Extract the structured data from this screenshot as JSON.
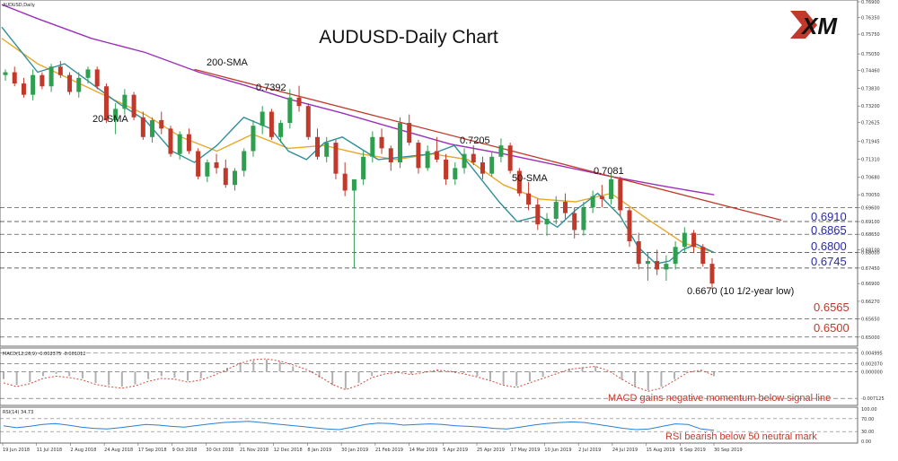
{
  "chart_data": {
    "type": "line",
    "title": "AUDUSD-Daily Chart",
    "symbol_label": "AUDUSD,Daily",
    "brand": "XM",
    "x_ticks": [
      "19 Jun 2018",
      "11 Jul 2018",
      "2 Aug 2018",
      "24 Aug 2018",
      "17 Sep 2018",
      "9 Oct 2018",
      "30 Oct 2018",
      "21 Nov 2018",
      "12 Dec 2018",
      "8 Jan 2019",
      "30 Jan 2019",
      "21 Feb 2019",
      "14 Mar 2019",
      "5 Apr 2019",
      "25 Apr 2019",
      "17 May 2019",
      "10 Jun 2019",
      "2 Jul 2019",
      "24 Jul 2019",
      "15 Aug 2019",
      "6 Sep 2019",
      "30 Sep 2019"
    ],
    "ylim": [
      0.6474,
      0.769
    ],
    "y_ticks": [
      "0.76900",
      "0.76350",
      "0.75750",
      "0.75050",
      "0.74460",
      "0.73830",
      "0.73200",
      "0.72625",
      "0.71945",
      "0.71310",
      "0.70680",
      "0.70050",
      "0.69600",
      "0.69100",
      "0.68650",
      "0.68100",
      "0.68000",
      "0.67450",
      "0.66900",
      "0.66270",
      "0.65650",
      "0.65000"
    ],
    "levels": [
      {
        "value": 0.696,
        "label": "",
        "color": "#000000"
      },
      {
        "value": 0.691,
        "label": "0.6910",
        "color": "#2a2aa8"
      },
      {
        "value": 0.6865,
        "label": "0.6865",
        "color": "#2a2aa8"
      },
      {
        "value": 0.68,
        "label": "0.6800",
        "color": "#2a2aa8"
      },
      {
        "value": 0.6745,
        "label": "0.6745",
        "color": "#2a2aa8"
      },
      {
        "value": 0.6565,
        "label": "0.6565",
        "color": "#c0392b"
      },
      {
        "value": 0.65,
        "label": "0.6500",
        "color": "#c0392b"
      }
    ],
    "annotations": [
      {
        "text": "200-SMA",
        "color": "#9b2fb5"
      },
      {
        "text": "20-SMA",
        "color": "#2f8f9b"
      },
      {
        "text": "50-SMA",
        "color": "#e0a020"
      },
      {
        "text": "0.7392",
        "color": "#111111"
      },
      {
        "text": "0.7205",
        "color": "#111111"
      },
      {
        "text": "0.7081",
        "color": "#111111"
      },
      {
        "text": "0.6670 (10 1/2-year low)",
        "color": "#111111"
      }
    ],
    "series": [
      {
        "name": "200-SMA",
        "color": "#9b30b8",
        "points": [
          [
            0,
            0.768
          ],
          [
            40,
            0.763
          ],
          [
            100,
            0.756
          ],
          [
            160,
            0.751
          ],
          [
            220,
            0.744
          ],
          [
            270,
            0.7395
          ],
          [
            320,
            0.7345
          ],
          [
            380,
            0.7295
          ],
          [
            440,
            0.724
          ],
          [
            500,
            0.7185
          ],
          [
            560,
            0.715
          ],
          [
            620,
            0.711
          ],
          [
            680,
            0.707
          ],
          [
            740,
            0.7035
          ],
          [
            795,
            0.7005
          ]
        ]
      },
      {
        "name": "50-SMA",
        "color": "#e8a82a",
        "points": [
          [
            0,
            0.756
          ],
          [
            40,
            0.747
          ],
          [
            100,
            0.738
          ],
          [
            160,
            0.729
          ],
          [
            200,
            0.721
          ],
          [
            240,
            0.716
          ],
          [
            280,
            0.722
          ],
          [
            320,
            0.717
          ],
          [
            360,
            0.718
          ],
          [
            400,
            0.715
          ],
          [
            440,
            0.713
          ],
          [
            480,
            0.715
          ],
          [
            520,
            0.713
          ],
          [
            560,
            0.704
          ],
          [
            600,
            0.699
          ],
          [
            640,
            0.698
          ],
          [
            680,
            0.701
          ],
          [
            720,
            0.692
          ],
          [
            760,
            0.6835
          ],
          [
            795,
            0.68
          ]
        ]
      },
      {
        "name": "20-SMA",
        "color": "#2f8f9b",
        "points": [
          [
            0,
            0.76
          ],
          [
            20,
            0.752
          ],
          [
            40,
            0.744
          ],
          [
            70,
            0.747
          ],
          [
            100,
            0.74
          ],
          [
            130,
            0.733
          ],
          [
            160,
            0.727
          ],
          [
            190,
            0.716
          ],
          [
            215,
            0.712
          ],
          [
            240,
            0.718
          ],
          [
            270,
            0.728
          ],
          [
            300,
            0.724
          ],
          [
            320,
            0.716
          ],
          [
            340,
            0.713
          ],
          [
            360,
            0.719
          ],
          [
            380,
            0.721
          ],
          [
            400,
            0.717
          ],
          [
            420,
            0.713
          ],
          [
            450,
            0.714
          ],
          [
            480,
            0.715
          ],
          [
            505,
            0.718
          ],
          [
            530,
            0.708
          ],
          [
            555,
            0.698
          ],
          [
            575,
            0.691
          ],
          [
            600,
            0.693
          ],
          [
            620,
            0.689
          ],
          [
            640,
            0.695
          ],
          [
            665,
            0.701
          ],
          [
            690,
            0.693
          ],
          [
            710,
            0.682
          ],
          [
            730,
            0.676
          ],
          [
            745,
            0.677
          ],
          [
            760,
            0.681
          ],
          [
            775,
            0.683
          ],
          [
            795,
            0.68
          ]
        ]
      },
      {
        "name": "",
        "color": "#c0392b",
        "points": [
          [
            215,
            0.745
          ],
          [
            870,
            0.6915
          ]
        ]
      }
    ],
    "candles": [
      [
        0.743,
        0.745,
        0.741,
        0.744
      ],
      [
        0.744,
        0.746,
        0.739,
        0.74
      ],
      [
        0.74,
        0.742,
        0.735,
        0.736
      ],
      [
        0.736,
        0.745,
        0.734,
        0.743
      ],
      [
        0.743,
        0.744,
        0.738,
        0.739
      ],
      [
        0.739,
        0.747,
        0.737,
        0.746
      ],
      [
        0.746,
        0.748,
        0.742,
        0.743
      ],
      [
        0.743,
        0.744,
        0.736,
        0.737
      ],
      [
        0.737,
        0.744,
        0.735,
        0.742
      ],
      [
        0.742,
        0.746,
        0.74,
        0.745
      ],
      [
        0.745,
        0.746,
        0.738,
        0.739
      ],
      [
        0.739,
        0.74,
        0.726,
        0.727
      ],
      [
        0.727,
        0.733,
        0.722,
        0.731
      ],
      [
        0.731,
        0.738,
        0.729,
        0.736
      ],
      [
        0.736,
        0.737,
        0.727,
        0.728
      ],
      [
        0.728,
        0.73,
        0.72,
        0.721
      ],
      [
        0.721,
        0.728,
        0.719,
        0.727
      ],
      [
        0.727,
        0.73,
        0.722,
        0.724
      ],
      [
        0.724,
        0.725,
        0.714,
        0.715
      ],
      [
        0.715,
        0.723,
        0.713,
        0.722
      ],
      [
        0.722,
        0.724,
        0.715,
        0.716
      ],
      [
        0.716,
        0.717,
        0.706,
        0.707
      ],
      [
        0.707,
        0.713,
        0.705,
        0.712
      ],
      [
        0.712,
        0.715,
        0.708,
        0.71
      ],
      [
        0.71,
        0.713,
        0.703,
        0.704
      ],
      [
        0.704,
        0.71,
        0.702,
        0.709
      ],
      [
        0.709,
        0.717,
        0.707,
        0.716
      ],
      [
        0.716,
        0.727,
        0.714,
        0.725
      ],
      [
        0.725,
        0.732,
        0.722,
        0.73
      ],
      [
        0.73,
        0.731,
        0.72,
        0.721
      ],
      [
        0.721,
        0.727,
        0.719,
        0.726
      ],
      [
        0.726,
        0.738,
        0.724,
        0.735
      ],
      [
        0.735,
        0.7392,
        0.73,
        0.732
      ],
      [
        0.732,
        0.733,
        0.72,
        0.721
      ],
      [
        0.721,
        0.724,
        0.713,
        0.714
      ],
      [
        0.714,
        0.721,
        0.712,
        0.719
      ],
      [
        0.719,
        0.72,
        0.706,
        0.708
      ],
      [
        0.708,
        0.712,
        0.7,
        0.702
      ],
      [
        0.702,
        0.705,
        0.6745,
        0.706
      ],
      [
        0.706,
        0.716,
        0.704,
        0.714
      ],
      [
        0.714,
        0.723,
        0.712,
        0.721
      ],
      [
        0.721,
        0.724,
        0.715,
        0.717
      ],
      [
        0.717,
        0.718,
        0.709,
        0.712
      ],
      [
        0.712,
        0.728,
        0.71,
        0.726
      ],
      [
        0.726,
        0.729,
        0.718,
        0.719
      ],
      [
        0.719,
        0.72,
        0.708,
        0.71
      ],
      [
        0.71,
        0.718,
        0.709,
        0.716
      ],
      [
        0.716,
        0.721,
        0.712,
        0.713
      ],
      [
        0.713,
        0.715,
        0.704,
        0.706
      ],
      [
        0.706,
        0.712,
        0.704,
        0.71
      ],
      [
        0.71,
        0.717,
        0.708,
        0.715
      ],
      [
        0.715,
        0.718,
        0.711,
        0.712
      ],
      [
        0.712,
        0.714,
        0.706,
        0.708
      ],
      [
        0.708,
        0.716,
        0.707,
        0.714
      ],
      [
        0.714,
        0.7205,
        0.712,
        0.718
      ],
      [
        0.718,
        0.719,
        0.708,
        0.709
      ],
      [
        0.709,
        0.71,
        0.7,
        0.701
      ],
      [
        0.701,
        0.705,
        0.695,
        0.697
      ],
      [
        0.697,
        0.699,
        0.688,
        0.69
      ],
      [
        0.69,
        0.694,
        0.686,
        0.692
      ],
      [
        0.692,
        0.7,
        0.69,
        0.698
      ],
      [
        0.698,
        0.701,
        0.692,
        0.694
      ],
      [
        0.694,
        0.696,
        0.685,
        0.688
      ],
      [
        0.688,
        0.698,
        0.686,
        0.696
      ],
      [
        0.696,
        0.702,
        0.694,
        0.7
      ],
      [
        0.7,
        0.704,
        0.696,
        0.699
      ],
      [
        0.699,
        0.7081,
        0.697,
        0.706
      ],
      [
        0.706,
        0.707,
        0.693,
        0.695
      ],
      [
        0.695,
        0.696,
        0.682,
        0.684
      ],
      [
        0.684,
        0.687,
        0.674,
        0.676
      ],
      [
        0.676,
        0.68,
        0.67,
        0.677
      ],
      [
        0.677,
        0.681,
        0.672,
        0.674
      ],
      [
        0.674,
        0.679,
        0.67,
        0.676
      ],
      [
        0.676,
        0.684,
        0.674,
        0.682
      ],
      [
        0.682,
        0.689,
        0.68,
        0.687
      ],
      [
        0.687,
        0.688,
        0.68,
        0.682
      ],
      [
        0.682,
        0.683,
        0.675,
        0.676
      ],
      [
        0.676,
        0.678,
        0.667,
        0.669
      ]
    ],
    "macd": {
      "label": "MACD(12,26,9) -0.002375 -0.001012",
      "ylim": [
        -0.0085,
        0.0058
      ],
      "y_ticks": [
        "0.004995",
        "0.002070",
        "0.000000",
        "-0.007125"
      ],
      "signal": [
        -0.003,
        -0.004,
        -0.0032,
        -0.0018,
        -0.0012,
        -0.0016,
        -0.0022,
        -0.0034,
        -0.004,
        -0.0044,
        -0.0038,
        -0.0026,
        -0.0018,
        -0.002,
        -0.0028,
        -0.0022,
        -0.001,
        0.0006,
        0.0022,
        0.0032,
        0.0034,
        0.0028,
        0.0018,
        0.0006,
        -0.0012,
        -0.0034,
        -0.0048,
        -0.0036,
        -0.0016,
        -0.0006,
        -0.0002,
        -0.0008,
        -0.0002,
        0.0004,
        0.0,
        -0.0006,
        -0.0014,
        -0.0024,
        -0.0036,
        -0.0042,
        -0.003,
        -0.0018,
        -0.0006,
        0.0006,
        0.001,
        0.0014,
        0.0002,
        -0.002,
        -0.004,
        -0.0052,
        -0.0044,
        -0.0024,
        -0.0002,
        0.0004,
        -0.001
      ],
      "histogram": [
        -0.002,
        -0.0035,
        -0.0028,
        -0.0012,
        -0.0006,
        -0.0012,
        -0.0018,
        -0.003,
        -0.0036,
        -0.004,
        -0.0034,
        -0.002,
        -0.0012,
        -0.0016,
        -0.0024,
        -0.0018,
        -0.0004,
        0.001,
        0.0024,
        0.003,
        0.0032,
        0.0026,
        0.0014,
        0.0002,
        -0.0016,
        -0.0036,
        -0.0046,
        -0.003,
        -0.0012,
        -0.0002,
        0.0,
        -0.0006,
        0.0,
        0.0006,
        0.0002,
        -0.0004,
        -0.0012,
        -0.0022,
        -0.0034,
        -0.0038,
        -0.0026,
        -0.0014,
        -0.0002,
        0.0008,
        0.0012,
        0.0014,
        0.0,
        -0.0022,
        -0.004,
        -0.005,
        -0.004,
        -0.002,
        0.0002,
        0.0004,
        -0.0012
      ],
      "note": "MACD gains negative momentum below signal line"
    },
    "rsi": {
      "label": "RSI(14) 34.73",
      "ylim": [
        0,
        100
      ],
      "y_ticks": [
        "100.00",
        "70.00",
        "30.00",
        "0.00"
      ],
      "values": [
        48,
        42,
        46,
        52,
        55,
        50,
        44,
        40,
        38,
        42,
        47,
        52,
        50,
        46,
        44,
        49,
        54,
        58,
        60,
        62,
        58,
        54,
        50,
        46,
        42,
        38,
        36,
        44,
        52,
        56,
        55,
        50,
        52,
        54,
        52,
        48,
        46,
        44,
        40,
        38,
        44,
        50,
        55,
        58,
        60,
        58,
        52,
        46,
        40,
        36,
        38,
        46,
        54,
        52,
        38,
        34
      ],
      "note": "RSI bearish below 50 neutral mark"
    }
  }
}
